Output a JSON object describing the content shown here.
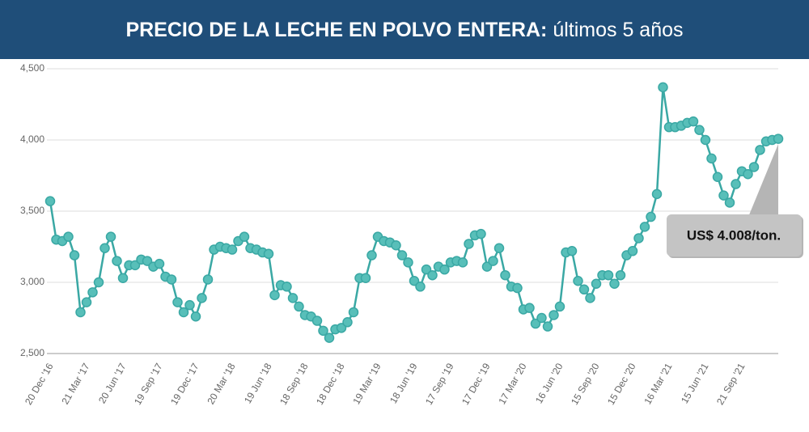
{
  "chart_data": {
    "type": "line",
    "title": "PRECIO DE LA LECHE EN POLVO ENTERA:",
    "subtitle": "últimos 5 años",
    "annotation": "US$ 4.008/ton.",
    "categories": [
      "20 Dec '16",
      null,
      null,
      null,
      null,
      null,
      "21 Mar '17",
      null,
      null,
      null,
      null,
      null,
      "20 Jun '17",
      null,
      null,
      null,
      null,
      null,
      "19 Sep '17",
      null,
      null,
      null,
      null,
      null,
      "19 Dec '17",
      null,
      null,
      null,
      null,
      null,
      "20 Mar '18",
      null,
      null,
      null,
      null,
      null,
      "19 Jun '18",
      null,
      null,
      null,
      null,
      null,
      "18 Sep '18",
      null,
      null,
      null,
      null,
      null,
      "18 Dec '18",
      null,
      null,
      null,
      null,
      null,
      "19 Mar '19",
      null,
      null,
      null,
      null,
      null,
      "18 Jun '19",
      null,
      null,
      null,
      null,
      null,
      "17 Sep '19",
      null,
      null,
      null,
      null,
      null,
      "17 Dec '19",
      null,
      null,
      null,
      null,
      null,
      "17 Mar '20",
      null,
      null,
      null,
      null,
      null,
      "16 Jun '20",
      null,
      null,
      null,
      null,
      null,
      "15 Sep '20",
      null,
      null,
      null,
      null,
      null,
      "15 Dec '20",
      null,
      null,
      null,
      null,
      null,
      "16 Mar '21",
      null,
      null,
      null,
      null,
      null,
      "15 Jun '21",
      null,
      null,
      null,
      null,
      null,
      "21 Sep '21",
      null,
      null,
      null,
      null,
      null,
      null
    ],
    "values": [
      3570,
      3300,
      3290,
      3320,
      3190,
      2790,
      2860,
      2930,
      3000,
      3240,
      3320,
      3150,
      3030,
      3120,
      3120,
      3160,
      3150,
      3110,
      3130,
      3040,
      3020,
      2860,
      2790,
      2840,
      2760,
      2890,
      3020,
      3230,
      3250,
      3240,
      3230,
      3290,
      3320,
      3240,
      3230,
      3210,
      3200,
      2910,
      2980,
      2970,
      2890,
      2830,
      2770,
      2760,
      2730,
      2660,
      2610,
      2670,
      2680,
      2720,
      2790,
      3030,
      3030,
      3190,
      3320,
      3290,
      3280,
      3260,
      3190,
      3140,
      3010,
      2970,
      3090,
      3050,
      3110,
      3090,
      3140,
      3150,
      3140,
      3270,
      3330,
      3340,
      3110,
      3150,
      3240,
      3050,
      2970,
      2960,
      2810,
      2820,
      2710,
      2750,
      2690,
      2770,
      2830,
      3210,
      3220,
      3010,
      2950,
      2890,
      2990,
      3050,
      3050,
      2990,
      3050,
      3190,
      3220,
      3310,
      3390,
      3460,
      3620,
      4370,
      4090,
      4090,
      4100,
      4120,
      4130,
      4070,
      4000,
      3870,
      3740,
      3610,
      3560,
      3690,
      3780,
      3760,
      3810,
      3930,
      3990,
      4000,
      4008
    ],
    "color": "#3aa8a4",
    "ylim": [
      2500,
      4500
    ],
    "yticks": [
      {
        "value": 2500,
        "label": "2,500"
      },
      {
        "value": 3000,
        "label": "3,000"
      },
      {
        "value": 3500,
        "label": "3,500"
      },
      {
        "value": 4000,
        "label": "4,000"
      },
      {
        "value": 4500,
        "label": "4,500"
      }
    ],
    "grid": true
  }
}
